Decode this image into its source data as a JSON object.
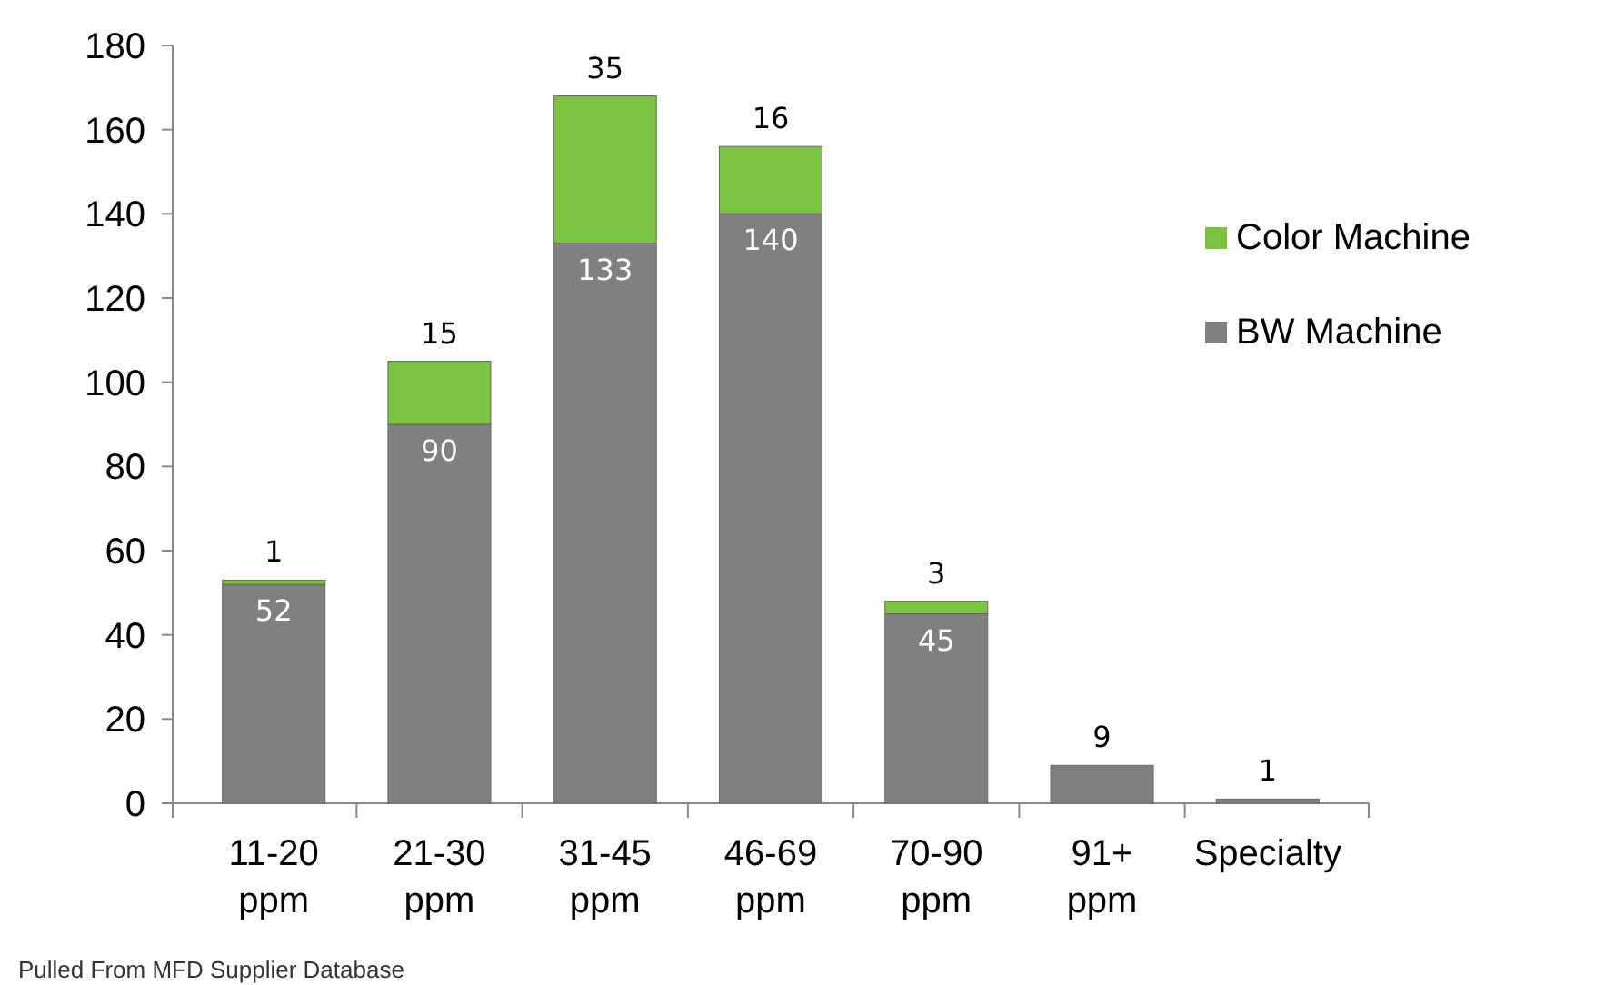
{
  "chart_data": {
    "type": "bar",
    "stacked": true,
    "categories": [
      "11-20 ppm",
      "21-30 ppm",
      "31-45 ppm",
      "46-69 ppm",
      "70-90 ppm",
      "91+ ppm",
      "Specialty"
    ],
    "series": [
      {
        "name": "BW Machine",
        "color": "#808080",
        "values": [
          52,
          90,
          133,
          140,
          45,
          9,
          1
        ]
      },
      {
        "name": "Color Machine",
        "color": "#7dc142",
        "values": [
          1,
          15,
          35,
          16,
          3,
          null,
          null
        ]
      }
    ],
    "ylim": [
      0,
      180
    ],
    "yticks": [
      0,
      20,
      40,
      60,
      80,
      100,
      120,
      140,
      160,
      180
    ],
    "data_labels": true,
    "legend": "right",
    "annotations": [
      "Pulled From MFD Supplier Database"
    ]
  }
}
